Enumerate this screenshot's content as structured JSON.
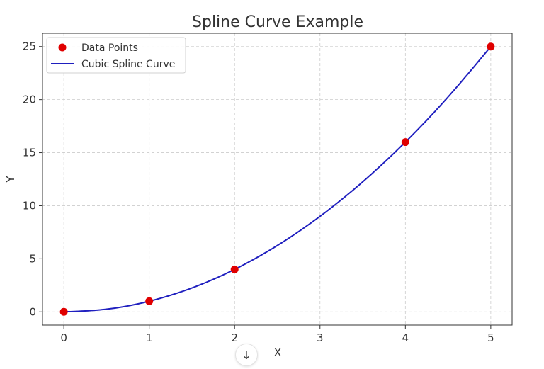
{
  "chart_data": {
    "type": "line",
    "title": "Spline Curve Example",
    "xlabel": "X",
    "ylabel": "Y",
    "xlim": [
      -0.25,
      5.25
    ],
    "ylim": [
      -1.25,
      26.25
    ],
    "xticks": [
      0,
      1,
      2,
      3,
      4,
      5
    ],
    "yticks": [
      0,
      5,
      10,
      15,
      20,
      25
    ],
    "grid": true,
    "legend_position": "top-left",
    "series": [
      {
        "name": "Data Points",
        "kind": "scatter",
        "color": "#e00000",
        "x": [
          0,
          1,
          2,
          4,
          5
        ],
        "y": [
          0,
          1,
          4,
          16,
          25
        ]
      },
      {
        "name": "Cubic Spline Curve",
        "kind": "line",
        "color": "#1f1fbf",
        "x": [
          0,
          0.5,
          1,
          1.5,
          2,
          2.5,
          3,
          3.5,
          4,
          4.5,
          5
        ],
        "y": [
          0,
          0.25,
          1,
          2.25,
          4,
          6.25,
          9,
          12.25,
          16,
          20.25,
          25
        ]
      }
    ]
  },
  "scroll_button": {
    "icon": "arrow-down-icon",
    "glyph": "↓"
  }
}
